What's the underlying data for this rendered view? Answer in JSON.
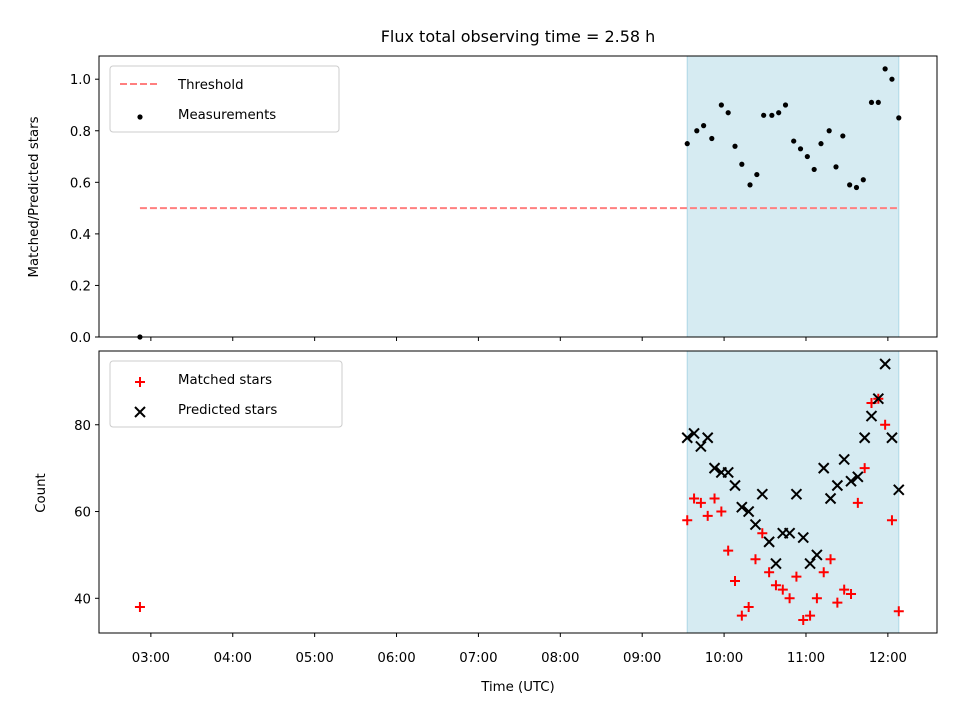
{
  "chart_data": [
    {
      "type": "scatter",
      "title": "Flux total observing time = 2.58 h",
      "xlabel": "",
      "ylabel": "Matched/Predicted stars",
      "xlim": [
        "02:22",
        "12:36"
      ],
      "ylim": [
        0.0,
        1.09
      ],
      "yticks": [
        "0.0",
        "0.2",
        "0.4",
        "0.6",
        "0.8",
        "1.0"
      ],
      "shaded_range": {
        "x": [
          "09:33",
          "12:08"
        ],
        "color": "#add8e6"
      },
      "legend": {
        "position": "top-left",
        "entries": [
          "Threshold",
          "Measurements"
        ]
      },
      "series": [
        {
          "name": "Threshold",
          "style": "dashed-line",
          "color": "#ff7f7f",
          "x": [
            "02:52",
            "12:08"
          ],
          "y": [
            0.5,
            0.5
          ]
        },
        {
          "name": "Measurements",
          "style": "dot",
          "color": "#000000",
          "x": [
            "02:52",
            "09:33",
            "09:40",
            "09:45",
            "09:51",
            "09:58",
            "10:03",
            "10:08",
            "10:13",
            "10:19",
            "10:24",
            "10:29",
            "10:35",
            "10:40",
            "10:45",
            "10:51",
            "10:56",
            "11:01",
            "11:06",
            "11:11",
            "11:17",
            "11:22",
            "11:27",
            "11:32",
            "11:37",
            "11:42",
            "11:48",
            "11:53",
            "11:58",
            "12:03",
            "12:08"
          ],
          "y": [
            0.0,
            0.75,
            0.8,
            0.82,
            0.77,
            0.9,
            0.87,
            0.74,
            0.67,
            0.59,
            0.63,
            0.86,
            0.86,
            0.87,
            0.9,
            0.76,
            0.73,
            0.7,
            0.65,
            0.75,
            0.8,
            0.66,
            0.78,
            0.59,
            0.58,
            0.61,
            0.91,
            0.91,
            1.04,
            1.0,
            0.85
          ]
        }
      ]
    },
    {
      "type": "scatter",
      "title": "",
      "xlabel": "Time (UTC)",
      "ylabel": "Count",
      "xlim": [
        "02:22",
        "12:36"
      ],
      "ylim": [
        32,
        97
      ],
      "yticks": [
        "40",
        "60",
        "80"
      ],
      "xticks": [
        "03:00",
        "04:00",
        "05:00",
        "06:00",
        "07:00",
        "08:00",
        "09:00",
        "10:00",
        "11:00",
        "12:00"
      ],
      "shaded_range": {
        "x": [
          "09:33",
          "12:08"
        ],
        "color": "#add8e6"
      },
      "legend": {
        "position": "top-left",
        "entries": [
          "Matched stars",
          "Predicted stars"
        ]
      },
      "series": [
        {
          "name": "Matched stars",
          "style": "plus",
          "color": "#ff0000",
          "x": [
            "02:52",
            "09:33",
            "09:38",
            "09:43",
            "09:48",
            "09:53",
            "09:58",
            "10:03",
            "10:08",
            "10:13",
            "10:18",
            "10:23",
            "10:28",
            "10:33",
            "10:38",
            "10:43",
            "10:48",
            "10:53",
            "10:58",
            "11:03",
            "11:08",
            "11:13",
            "11:18",
            "11:23",
            "11:28",
            "11:33",
            "11:38",
            "11:43",
            "11:48",
            "11:53",
            "11:58",
            "12:03",
            "12:08"
          ],
          "y": [
            38,
            58,
            63,
            62,
            59,
            63,
            60,
            51,
            44,
            36,
            38,
            49,
            55,
            46,
            43,
            42,
            40,
            45,
            35,
            36,
            40,
            46,
            49,
            39,
            42,
            41,
            62,
            70,
            85,
            86,
            80,
            58,
            37
          ]
        },
        {
          "name": "Predicted stars",
          "style": "x",
          "color": "#000000",
          "x": [
            "09:33",
            "09:38",
            "09:43",
            "09:48",
            "09:53",
            "09:58",
            "10:03",
            "10:08",
            "10:13",
            "10:18",
            "10:23",
            "10:28",
            "10:33",
            "10:38",
            "10:43",
            "10:48",
            "10:53",
            "10:58",
            "11:03",
            "11:08",
            "11:13",
            "11:18",
            "11:23",
            "11:28",
            "11:33",
            "11:38",
            "11:43",
            "11:48",
            "11:53",
            "11:58",
            "12:03",
            "12:08"
          ],
          "y": [
            77,
            78,
            75,
            77,
            70,
            69,
            69,
            66,
            61,
            60,
            57,
            64,
            53,
            48,
            55,
            55,
            64,
            54,
            48,
            50,
            70,
            63,
            66,
            72,
            67,
            68,
            77,
            82,
            86,
            94,
            77,
            65
          ]
        }
      ]
    }
  ]
}
